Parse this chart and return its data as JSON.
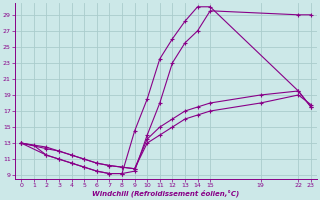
{
  "xlabel": "Windchill (Refroidissement éolien,°C)",
  "bg_color": "#cce8e8",
  "line_color": "#880088",
  "grid_color": "#b0d8d8",
  "xlim": [
    -0.5,
    23.5
  ],
  "ylim": [
    8.5,
    30.5
  ],
  "xticks": [
    0,
    1,
    2,
    3,
    4,
    5,
    6,
    7,
    8,
    9,
    10,
    11,
    12,
    13,
    14,
    15,
    19,
    22,
    23
  ],
  "yticks": [
    9,
    11,
    13,
    15,
    17,
    19,
    21,
    23,
    25,
    27,
    29
  ],
  "lines": [
    {
      "x": [
        0,
        1,
        2,
        3,
        4,
        5,
        6,
        7,
        8,
        9,
        10,
        11,
        12,
        13,
        14,
        15,
        22,
        23
      ],
      "y": [
        13,
        12.7,
        11.5,
        11.0,
        10.5,
        10.0,
        9.5,
        9.2,
        9.2,
        14.5,
        18.5,
        23.5,
        26,
        28.2,
        30.0,
        30.0,
        19.5,
        17.5
      ]
    },
    {
      "x": [
        0,
        2,
        3,
        4,
        5,
        6,
        7,
        8,
        9,
        10,
        11,
        12,
        13,
        14,
        15,
        22,
        23
      ],
      "y": [
        13,
        11.5,
        11.0,
        10.5,
        10.0,
        9.5,
        9.2,
        9.2,
        9.5,
        14.0,
        18.0,
        23.0,
        25.5,
        27.0,
        29.5,
        29.0,
        29.0
      ]
    },
    {
      "x": [
        0,
        2,
        3,
        4,
        5,
        6,
        7,
        8,
        9,
        10,
        11,
        12,
        13,
        14,
        15,
        19,
        22,
        23
      ],
      "y": [
        13,
        12.5,
        12.0,
        11.5,
        11.0,
        10.5,
        10.2,
        10.0,
        9.8,
        13.5,
        15.0,
        16.0,
        17.0,
        17.5,
        18.0,
        19.0,
        19.5,
        17.5
      ]
    },
    {
      "x": [
        0,
        2,
        3,
        4,
        5,
        6,
        7,
        8,
        9,
        10,
        11,
        12,
        13,
        14,
        15,
        19,
        22,
        23
      ],
      "y": [
        13,
        12.3,
        12.0,
        11.5,
        11.0,
        10.5,
        10.2,
        10.0,
        9.8,
        13.0,
        14.0,
        15.0,
        16.0,
        16.5,
        17.0,
        18.0,
        19.0,
        17.8
      ]
    }
  ]
}
